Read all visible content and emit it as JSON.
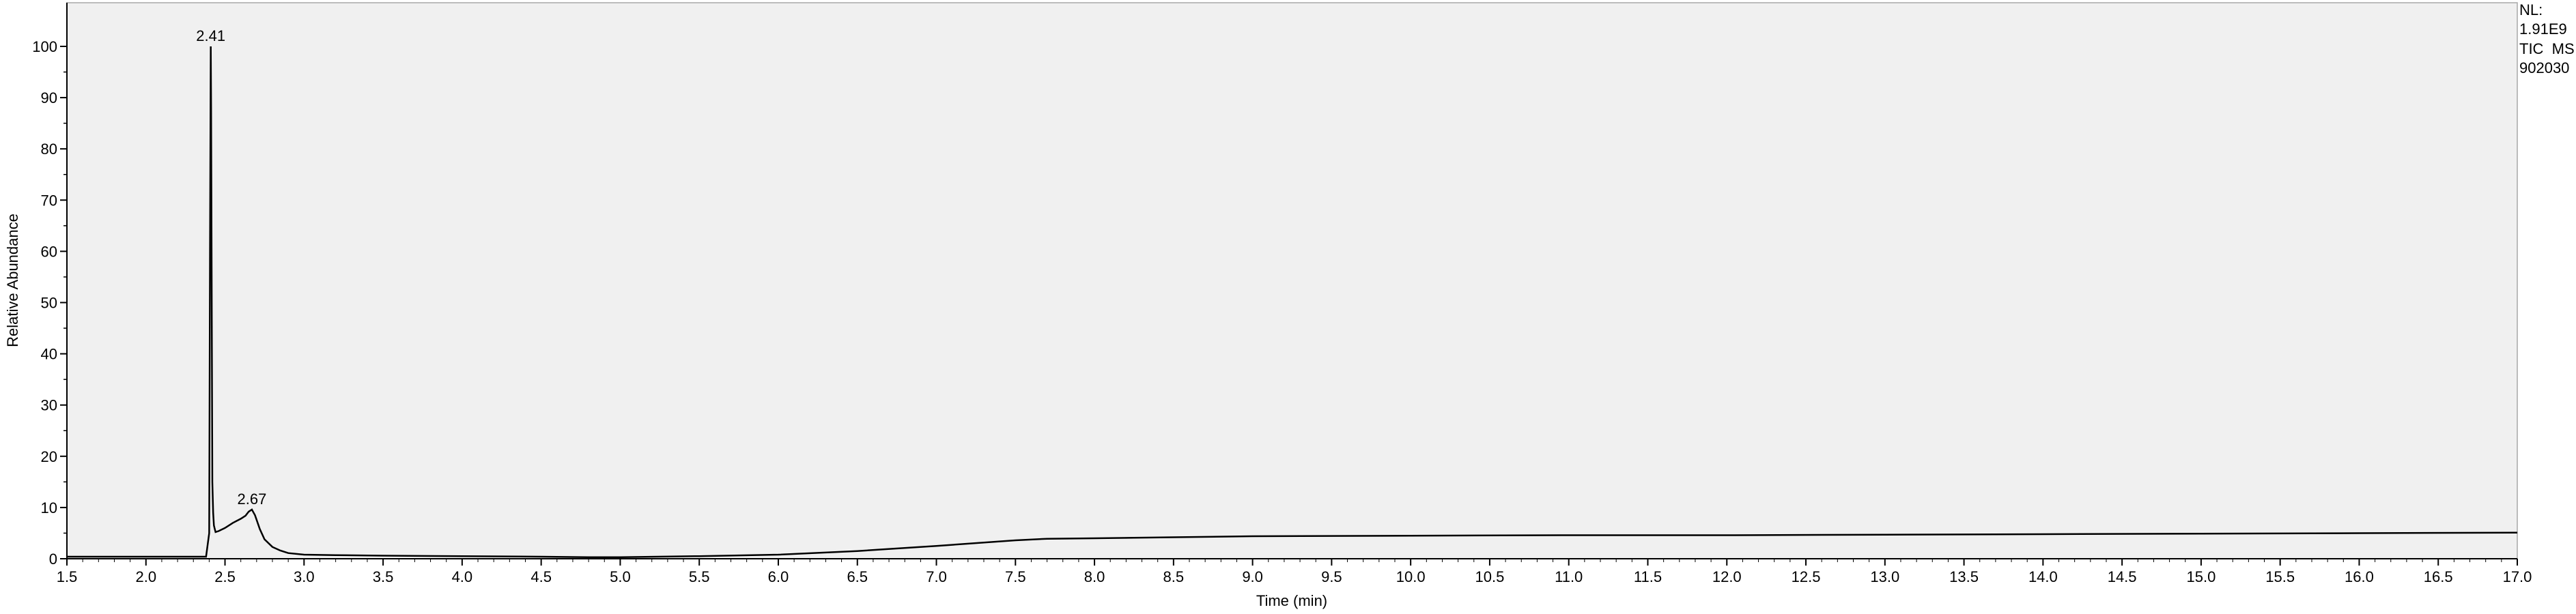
{
  "chart_data": {
    "type": "line",
    "title": "",
    "xlabel": "Time (min)",
    "ylabel": "Relative Abundance",
    "xlim": [
      1.5,
      17.0
    ],
    "ylim": [
      0,
      100
    ],
    "x_ticks": [
      "1.5",
      "2.0",
      "2.5",
      "3.0",
      "3.5",
      "4.0",
      "4.5",
      "5.0",
      "5.5",
      "6.0",
      "6.5",
      "7.0",
      "7.5",
      "8.0",
      "8.5",
      "9.0",
      "9.5",
      "10.0",
      "10.5",
      "11.0",
      "11.5",
      "12.0",
      "12.5",
      "13.0",
      "13.5",
      "14.0",
      "14.5",
      "15.0",
      "15.5",
      "16.0",
      "16.5",
      "17.0"
    ],
    "y_ticks": [
      "0",
      "10",
      "20",
      "30",
      "40",
      "50",
      "60",
      "70",
      "80",
      "90",
      "100"
    ],
    "info": {
      "line1": "NL:",
      "line2": "1.91E9",
      "line3": "TIC  MS",
      "line4": "902030"
    },
    "peak_labels": [
      {
        "label": "2.41",
        "x": 2.41,
        "y": 100
      },
      {
        "label": "2.67",
        "x": 2.67,
        "y": 9.6
      }
    ],
    "series": [
      {
        "name": "TIC MS",
        "x": [
          1.5,
          2.0,
          2.38,
          2.4,
          2.405,
          2.41,
          2.412,
          2.415,
          2.42,
          2.425,
          2.43,
          2.44,
          2.46,
          2.5,
          2.55,
          2.6,
          2.63,
          2.65,
          2.67,
          2.69,
          2.72,
          2.75,
          2.8,
          2.85,
          2.9,
          3.0,
          3.2,
          3.5,
          4.0,
          4.5,
          4.8,
          5.0,
          5.5,
          6.0,
          6.5,
          7.0,
          7.5,
          7.7,
          8.0,
          8.5,
          9.0,
          10.0,
          11.0,
          12.0,
          13.0,
          14.0,
          15.0,
          16.0,
          17.0
        ],
        "y": [
          0.4,
          0.4,
          0.4,
          5,
          60,
          100,
          88,
          59,
          15,
          9,
          6.5,
          5.2,
          5.4,
          6,
          7,
          7.8,
          8.4,
          9.2,
          9.6,
          8.5,
          5.8,
          3.8,
          2.3,
          1.6,
          1.1,
          0.8,
          0.7,
          0.6,
          0.5,
          0.4,
          0.3,
          0.3,
          0.5,
          0.8,
          1.5,
          2.5,
          3.6,
          3.9,
          4.0,
          4.2,
          4.4,
          4.5,
          4.6,
          4.6,
          4.7,
          4.8,
          4.9,
          5.0,
          5.1
        ]
      }
    ]
  }
}
